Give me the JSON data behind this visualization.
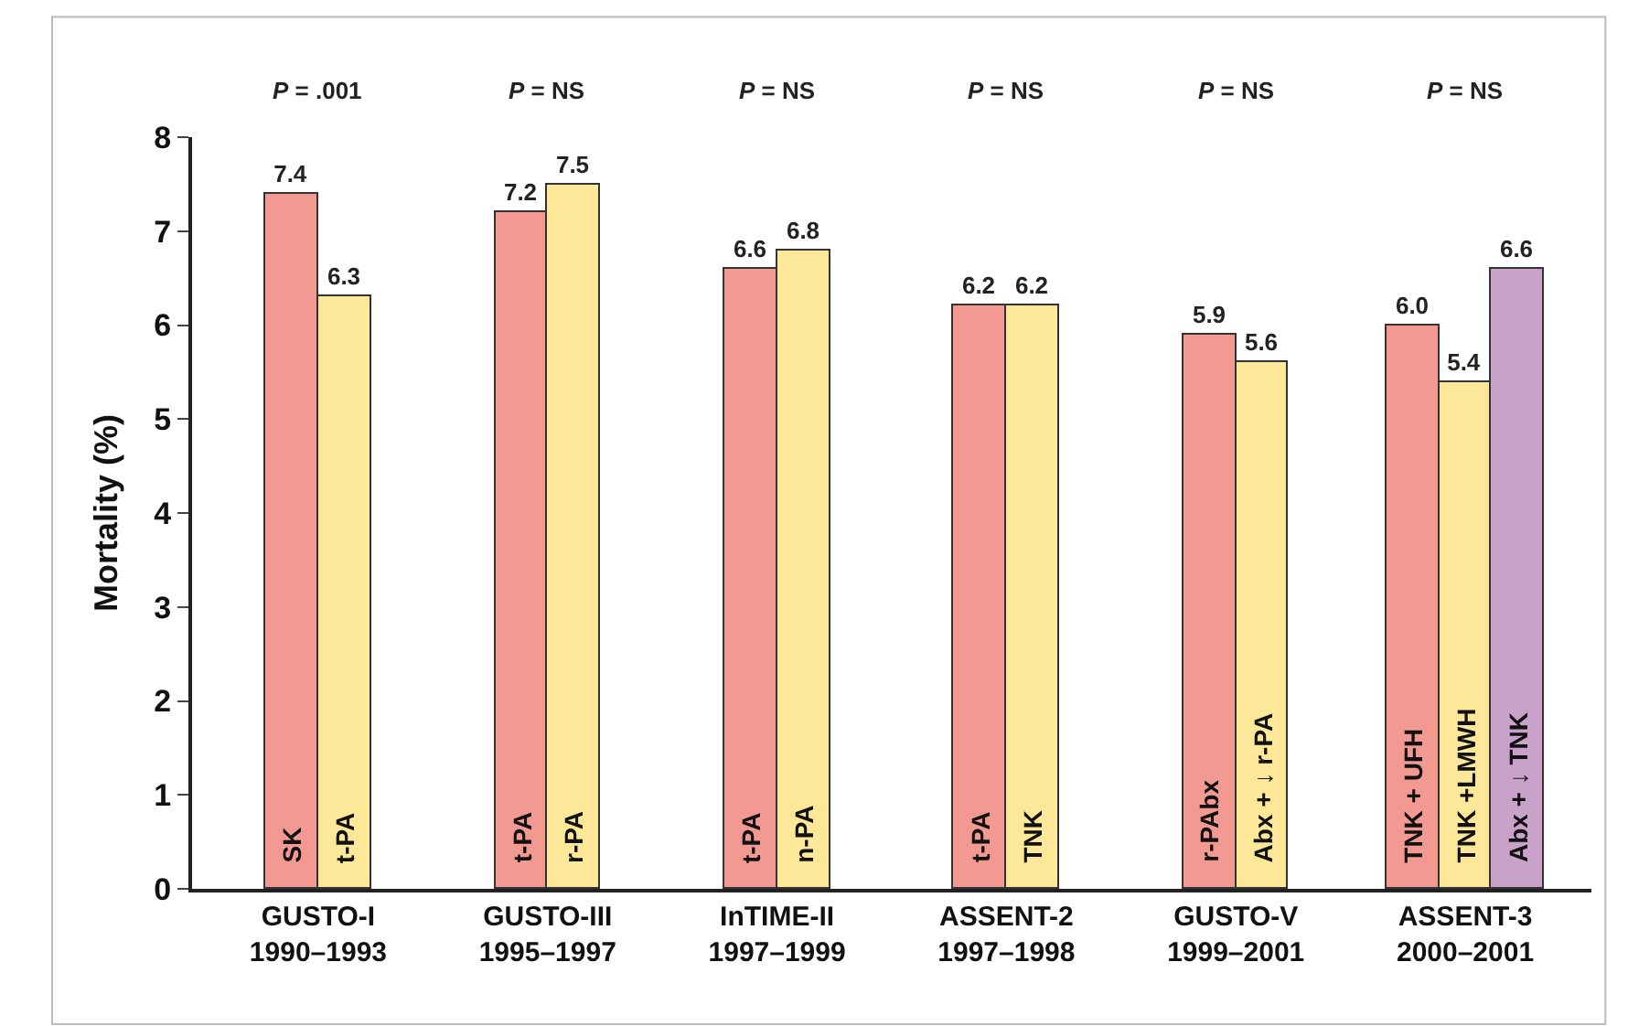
{
  "chart_data": {
    "type": "bar",
    "ylabel": "Mortality (%)",
    "categories": [
      "GUSTO-I\n1990–1993",
      "GUSTO-III\n1995–1997",
      "InTIME-II\n1997–1999",
      "ASSENT-2\n1997–1998",
      "GUSTO-V\n1999–2001",
      "ASSENT-3\n2000–2001"
    ],
    "series": [
      {
        "color": "#f29a92",
        "values": [
          7.4,
          7.2,
          6.6,
          6.2,
          5.9,
          6.0
        ],
        "value_labels": [
          "7.4",
          "7.2",
          "6.6",
          "6.2",
          "5.9",
          "6.0"
        ]
      },
      {
        "color": "#fde89a",
        "values": [
          6.3,
          7.5,
          6.8,
          6.2,
          5.6,
          5.4
        ],
        "value_labels": [
          "6.3",
          "7.5",
          "6.8",
          "6.2",
          "5.6",
          "5.4"
        ]
      },
      {
        "color": "#c9a2ca",
        "values": [
          null,
          null,
          null,
          null,
          null,
          6.6
        ],
        "value_labels": [
          null,
          null,
          null,
          null,
          null,
          "6.6"
        ]
      }
    ],
    "ylim": [
      0,
      8
    ],
    "yticks": [
      0,
      1,
      2,
      3,
      4,
      5,
      6,
      7,
      8
    ],
    "annotations": [
      "P = .001",
      "P = NS",
      "P = NS",
      "P = NS",
      "P = NS",
      "P = NS",
      "SK",
      "t-PA",
      "t-PA",
      "r-PA",
      "t-PA",
      "n-PA",
      "t-PA",
      "TNK",
      "r-PAbx",
      "Abx + ↓ r-PA",
      "TNK + UFH",
      "TNK +LMWH",
      "Abx + ↓ TNK"
    ]
  }
}
